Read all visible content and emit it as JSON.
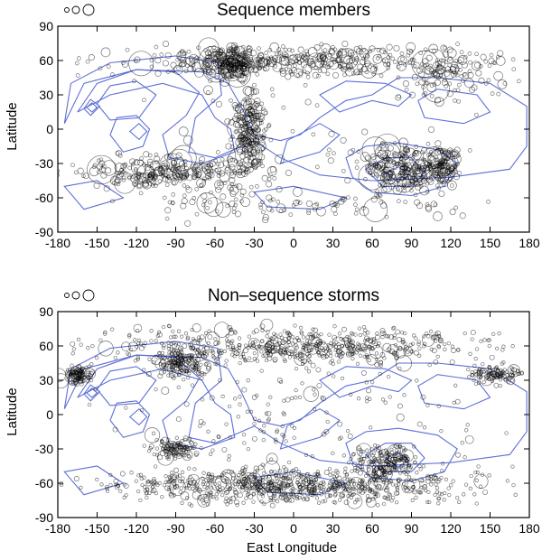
{
  "chart_data": [
    {
      "type": "scatter",
      "title": "Sequence members",
      "xlabel": "",
      "ylabel": "Latitude",
      "xlim": [
        -180,
        180
      ],
      "ylim": [
        -90,
        90
      ],
      "xticks": [
        "-180",
        "-150",
        "-120",
        "-90",
        "-60",
        "-30",
        "0",
        "30",
        "60",
        "90",
        "120",
        "150",
        "180"
      ],
      "yticks": [
        "90",
        "60",
        "30",
        "0",
        "-30",
        "-60",
        "-90"
      ],
      "grid": false,
      "contour_color": "#5d6fd6",
      "marker": "open-circle",
      "size_legend": "three circles of increasing size, top-left",
      "clusters": [
        {
          "lon": [
            -180,
            180
          ],
          "lat": [
            45,
            75
          ],
          "weight": 0.22
        },
        {
          "lon": [
            -75,
            -20
          ],
          "lat": [
            40,
            75
          ],
          "weight": 0.12
        },
        {
          "lon": [
            -50,
            -15
          ],
          "lat": [
            -40,
            40
          ],
          "weight": 0.12
        },
        {
          "lon": [
            -180,
            0
          ],
          "lat": [
            -55,
            -20
          ],
          "weight": 0.16
        },
        {
          "lon": [
            40,
            130
          ],
          "lat": [
            -60,
            -10
          ],
          "weight": 0.16
        },
        {
          "lon": [
            100,
            130
          ],
          "lat": [
            -45,
            -15
          ],
          "weight": 0.05
        },
        {
          "lon": [
            60,
            180
          ],
          "lat": [
            20,
            75
          ],
          "weight": 0.07
        },
        {
          "lon": [
            -180,
            180
          ],
          "lat": [
            -80,
            -50
          ],
          "weight": 0.06
        },
        {
          "lon": [
            -180,
            180
          ],
          "lat": [
            -90,
            90
          ],
          "weight": 0.04
        }
      ]
    },
    {
      "type": "scatter",
      "title": "Non–sequence storms",
      "xlabel": "East Longitude",
      "ylabel": "Latitude",
      "xlim": [
        -180,
        180
      ],
      "ylim": [
        -90,
        90
      ],
      "xticks": [
        "-180",
        "-150",
        "-120",
        "-90",
        "-60",
        "-30",
        "0",
        "30",
        "60",
        "90",
        "120",
        "150",
        "180"
      ],
      "yticks": [
        "90",
        "60",
        "30",
        "0",
        "-30",
        "-60",
        "-90"
      ],
      "grid": false,
      "contour_color": "#5d6fd6",
      "marker": "open-circle",
      "size_legend": "three circles of increasing size, top-left",
      "clusters": [
        {
          "lon": [
            -180,
            180
          ],
          "lat": [
            40,
            80
          ],
          "weight": 0.26
        },
        {
          "lon": [
            -180,
            -150
          ],
          "lat": [
            25,
            45
          ],
          "weight": 0.05
        },
        {
          "lon": [
            130,
            180
          ],
          "lat": [
            25,
            45
          ],
          "weight": 0.05
        },
        {
          "lon": [
            -180,
            180
          ],
          "lat": [
            -80,
            -45
          ],
          "weight": 0.34
        },
        {
          "lon": [
            40,
            100
          ],
          "lat": [
            -55,
            -25
          ],
          "weight": 0.08
        },
        {
          "lon": [
            -110,
            -70
          ],
          "lat": [
            -40,
            -20
          ],
          "weight": 0.05
        },
        {
          "lon": [
            -180,
            180
          ],
          "lat": [
            -90,
            90
          ],
          "weight": 0.1
        },
        {
          "lon": [
            -110,
            -60
          ],
          "lat": [
            30,
            60
          ],
          "weight": 0.07
        }
      ]
    }
  ]
}
